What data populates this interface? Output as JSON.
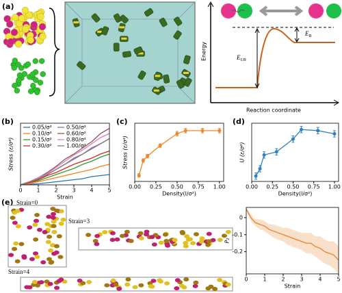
{
  "figure": {
    "panel_labels": [
      "(a)",
      "(b)",
      "(c)",
      "(d)",
      "(e)"
    ],
    "energy_diagram": {
      "y_label": "Energy",
      "x_label": "Reaction coordinate",
      "barrier_unbound": {
        "symbol": "E",
        "subscript": "UB"
      },
      "barrier_bound": {
        "symbol": "E",
        "subscript": "B"
      }
    },
    "snapshot_labels": [
      "Strain=0",
      "Strain=3",
      "Strain=4"
    ]
  },
  "chart_data": [
    {
      "type": "line",
      "x_label": "Strain",
      "y_label": "Stress (ε/σ³)",
      "xlim": [
        0,
        5
      ],
      "ylim": [
        0,
        0.6
      ],
      "xticks": [
        0,
        1,
        2,
        3,
        4,
        5
      ],
      "legend": "upper left",
      "x": [
        0,
        0.5,
        1,
        1.5,
        2,
        2.5,
        3,
        3.5,
        4,
        4.5,
        5
      ],
      "series": [
        {
          "name": "0.05/σ²",
          "color": "#1f77b4",
          "values": [
            0,
            0.005,
            0.01,
            0.02,
            0.03,
            0.04,
            0.05,
            0.06,
            0.08,
            0.09,
            0.1
          ]
        },
        {
          "name": "0.10/σ²",
          "color": "#ff7f0e",
          "values": [
            0,
            0.01,
            0.03,
            0.05,
            0.07,
            0.09,
            0.11,
            0.13,
            0.15,
            0.18,
            0.2
          ]
        },
        {
          "name": "0.15/σ²",
          "color": "#2ca02c",
          "values": [
            0,
            0.02,
            0.04,
            0.07,
            0.1,
            0.13,
            0.16,
            0.2,
            0.23,
            0.27,
            0.3
          ]
        },
        {
          "name": "0.30/σ²",
          "color": "#d62728",
          "values": [
            0,
            0.02,
            0.05,
            0.09,
            0.12,
            0.16,
            0.2,
            0.23,
            0.26,
            0.3,
            0.33
          ]
        },
        {
          "name": "0.50/σ²",
          "color": "#9467bd",
          "values": [
            0,
            0.03,
            0.06,
            0.1,
            0.15,
            0.2,
            0.25,
            0.3,
            0.35,
            0.4,
            0.45
          ]
        },
        {
          "name": "0.60/σ²",
          "color": "#8c564b",
          "values": [
            0,
            0.03,
            0.07,
            0.12,
            0.18,
            0.25,
            0.3,
            0.36,
            0.42,
            0.5,
            0.55
          ]
        },
        {
          "name": "0.80/σ²",
          "color": "#e377c2",
          "values": [
            0,
            0.03,
            0.07,
            0.11,
            0.17,
            0.23,
            0.29,
            0.34,
            0.4,
            0.46,
            0.5
          ]
        },
        {
          "name": "1.00/σ²",
          "color": "#7f7f7f",
          "values": [
            0,
            0.03,
            0.06,
            0.1,
            0.15,
            0.2,
            0.26,
            0.3,
            0.36,
            0.4,
            0.45
          ]
        }
      ]
    },
    {
      "type": "line",
      "x_label": "Density(l/σ²)",
      "y_label": "Stress (ε/σ³)",
      "xlim": [
        0,
        1.05
      ],
      "ylim": [
        0.05,
        0.44
      ],
      "xticks": [
        {
          "value": 0,
          "label": "0.00"
        },
        {
          "value": 0.25,
          "label": "0.25"
        },
        {
          "value": 0.5,
          "label": "0.50"
        },
        {
          "value": 0.75,
          "label": "0.75"
        },
        {
          "value": 1,
          "label": "1.00"
        }
      ],
      "x": [
        0.05,
        0.1,
        0.15,
        0.3,
        0.5,
        0.6,
        0.8,
        1.0
      ],
      "error_style": "bars",
      "series": [
        {
          "color": "#f0882a",
          "marker": "o",
          "values": [
            0.09,
            0.19,
            0.22,
            0.29,
            0.37,
            0.39,
            0.39,
            0.39
          ],
          "errors": [
            0.012,
            0.012,
            0.012,
            0.012,
            0.015,
            0.015,
            0.015,
            0.015
          ]
        }
      ]
    },
    {
      "type": "line",
      "x_label": "Density(l/σ²)",
      "y_label": "U (ε/σ³)",
      "xlim": [
        0,
        1.05
      ],
      "ylim": [
        0.1,
        0.65
      ],
      "xticks": [
        {
          "value": 0,
          "label": "0.00"
        },
        {
          "value": 0.25,
          "label": "0.25"
        },
        {
          "value": 0.5,
          "label": "0.50"
        },
        {
          "value": 0.75,
          "label": "0.75"
        },
        {
          "value": 1,
          "label": "1.00"
        }
      ],
      "x": [
        0.05,
        0.1,
        0.15,
        0.3,
        0.5,
        0.6,
        0.8,
        1.0
      ],
      "error_style": "bars",
      "series": [
        {
          "color": "#2f80c0",
          "marker": "o",
          "values": [
            0.15,
            0.22,
            0.35,
            0.38,
            0.5,
            0.59,
            0.58,
            0.55
          ],
          "errors": [
            0.03,
            0.03,
            0.03,
            0.03,
            0.03,
            0.03,
            0.03,
            0.03
          ]
        }
      ]
    },
    {
      "type": "line",
      "x_label": "Strain",
      "y_label": "P₂",
      "xlim": [
        0,
        5
      ],
      "ylim": [
        -0.33,
        0.06
      ],
      "xticks": [
        0,
        1,
        2,
        3,
        4,
        5
      ],
      "yticks": [
        0,
        -0.1,
        -0.2
      ],
      "x": [
        0,
        0.25,
        0.5,
        0.75,
        1,
        1.25,
        1.5,
        1.75,
        2,
        2.25,
        2.5,
        2.75,
        3,
        3.25,
        3.5,
        3.75,
        4,
        4.25,
        4.5,
        4.75,
        5
      ],
      "error_style": "band",
      "series": [
        {
          "color": "#e8822a",
          "values": [
            0.05,
            0.0,
            -0.03,
            -0.04,
            -0.05,
            -0.07,
            -0.08,
            -0.09,
            -0.1,
            -0.11,
            -0.12,
            -0.13,
            -0.14,
            -0.15,
            -0.15,
            -0.17,
            -0.18,
            -0.2,
            -0.21,
            -0.22,
            -0.25
          ],
          "errors": [
            0.01,
            0.02,
            0.02,
            0.03,
            0.03,
            0.03,
            0.04,
            0.04,
            0.04,
            0.05,
            0.05,
            0.05,
            0.05,
            0.06,
            0.06,
            0.06,
            0.07,
            0.07,
            0.07,
            0.08,
            0.08
          ]
        }
      ]
    }
  ]
}
